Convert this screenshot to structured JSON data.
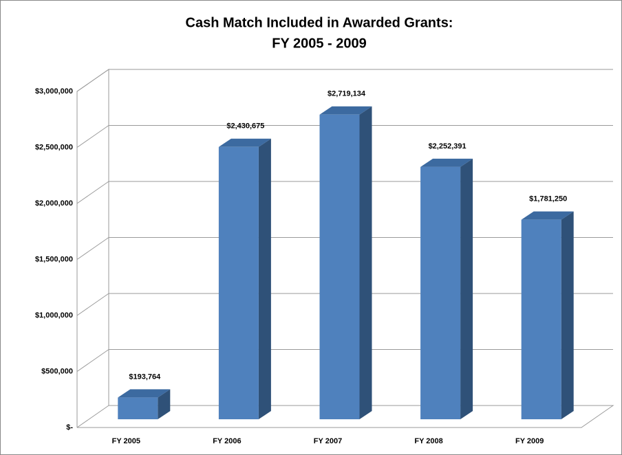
{
  "chart_data": {
    "type": "bar3d",
    "title": [
      "Cash Match Included in Awarded Grants:",
      "FY 2005 - 2009"
    ],
    "categories": [
      "FY 2005",
      "FY 2006",
      "FY 2007",
      "FY 2008",
      "FY 2009"
    ],
    "values": [
      193764,
      2430675,
      2719134,
      2252391,
      1781250
    ],
    "value_labels": [
      "$193,764",
      "$2,430,675",
      "$2,719,134",
      "$2,252,391",
      "$1,781,250"
    ],
    "color": "#4f81bd",
    "ylim": [
      0,
      3000000
    ],
    "yticks": [
      {
        "value": 0,
        "label": "$-"
      },
      {
        "value": 500000,
        "label": "$500,000"
      },
      {
        "value": 1000000,
        "label": "$1,000,000"
      },
      {
        "value": 1500000,
        "label": "$1,500,000"
      },
      {
        "value": 2000000,
        "label": "$2,000,000"
      },
      {
        "value": 2500000,
        "label": "$2,500,000"
      },
      {
        "value": 3000000,
        "label": "$3,000,000"
      }
    ],
    "grid": true
  }
}
